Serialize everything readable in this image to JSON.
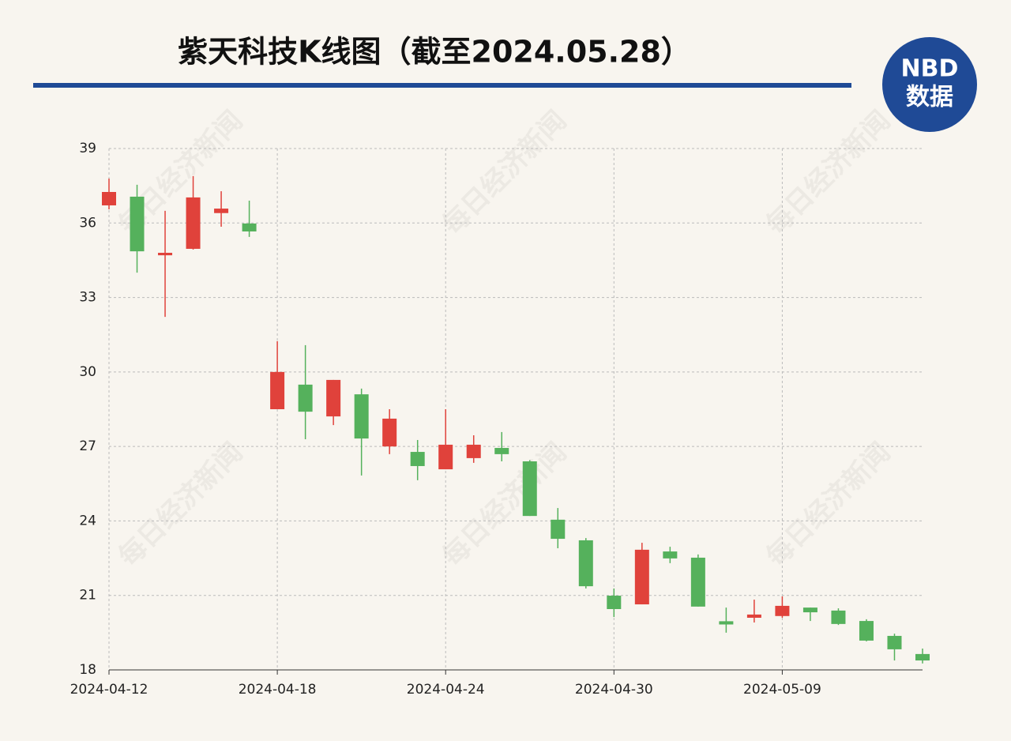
{
  "chart_data": {
    "type": "candlestick",
    "title": "紫天科技K线图（截至2024.05.28）",
    "logo_top": "NBD",
    "logo_bottom": "数据",
    "watermark": "每日经济新闻",
    "categories": [
      "2024-04-12",
      null,
      null,
      null,
      null,
      null,
      "2024-04-18",
      null,
      null,
      null,
      null,
      null,
      "2024-04-24",
      null,
      null,
      null,
      null,
      null,
      "2024-04-30",
      null,
      null,
      null,
      null,
      null,
      "2024-05-09",
      null,
      null,
      null,
      null,
      null
    ],
    "open": [
      36.71,
      37.06,
      34.7,
      34.96,
      36.4,
      35.98,
      28.5,
      29.49,
      28.21,
      29.1,
      27.0,
      26.78,
      26.08,
      26.53,
      26.94,
      26.4,
      24.05,
      23.22,
      20.99,
      20.64,
      22.77,
      22.52,
      19.96,
      20.1,
      20.17,
      20.51,
      20.39,
      19.97,
      19.37,
      18.64
    ],
    "high": [
      37.79,
      37.54,
      36.49,
      37.89,
      37.28,
      36.9,
      31.24,
      31.08,
      29.68,
      29.33,
      28.5,
      27.26,
      28.5,
      27.45,
      27.58,
      26.45,
      24.52,
      23.31,
      21.28,
      23.12,
      22.96,
      22.65,
      20.51,
      20.83,
      20.96,
      20.51,
      20.48,
      20.04,
      19.46,
      18.86
    ],
    "low": [
      36.55,
      34.0,
      32.22,
      34.93,
      35.85,
      35.44,
      28.5,
      27.29,
      27.86,
      25.83,
      26.69,
      25.64,
      26.08,
      26.34,
      26.4,
      24.2,
      22.9,
      21.28,
      20.13,
      20.64,
      22.3,
      20.55,
      19.5,
      19.91,
      20.1,
      19.97,
      19.81,
      19.15,
      18.38,
      18.26
    ],
    "close": [
      37.25,
      34.86,
      34.8,
      37.03,
      36.58,
      35.66,
      30.0,
      28.4,
      29.68,
      27.32,
      28.12,
      26.21,
      27.07,
      27.07,
      26.69,
      24.2,
      23.28,
      21.37,
      20.45,
      22.84,
      22.49,
      20.55,
      19.83,
      20.23,
      20.58,
      20.32,
      19.85,
      19.18,
      18.83,
      18.38
    ],
    "up_color": "#e0423b",
    "down_color": "#55b15c",
    "ylim": [
      18,
      39
    ],
    "yticks": [
      18,
      21,
      24,
      27,
      30,
      33,
      36,
      39
    ],
    "grid": true
  }
}
